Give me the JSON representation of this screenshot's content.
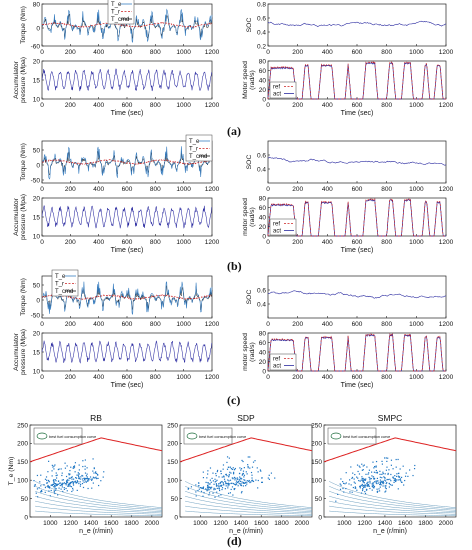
{
  "panel_labels": [
    "(a)",
    "(b)",
    "(c)",
    "(d)"
  ],
  "chart_data": [
    {
      "type": "line",
      "group": "a",
      "panels": [
        {
          "id": "torque",
          "ylabel": "Torque (Nm)",
          "xlabel": "",
          "xlim": [
            0,
            1200
          ],
          "ylim": [
            -60,
            80
          ],
          "xticks": [
            0,
            200,
            400,
            600,
            800,
            1000,
            1200
          ],
          "yticks": [
            -60,
            0,
            80
          ],
          "legend": [
            "T_e",
            "T_r",
            "T_cmd"
          ],
          "legend_position": "top-center"
        },
        {
          "id": "soc",
          "ylabel": "SOC",
          "xlabel": "",
          "xlim": [
            0,
            1200
          ],
          "ylim": [
            0.2,
            0.8
          ],
          "xticks": [
            0,
            200,
            400,
            600,
            800,
            1000,
            1200
          ],
          "yticks": [
            0.2,
            0.4,
            0.6,
            0.8
          ]
        },
        {
          "id": "pressure",
          "ylabel": "Accumulator pressure (Mpa)",
          "xlabel": "Time (sec)",
          "xlim": [
            0,
            1200
          ],
          "ylim": [
            10,
            20
          ],
          "xticks": [
            0,
            200,
            400,
            600,
            800,
            1000,
            1200
          ],
          "yticks": [
            10,
            15,
            20
          ]
        },
        {
          "id": "motor",
          "ylabel": "Motor speed (rad/s)",
          "xlabel": "Time (sec)",
          "xlim": [
            0,
            1200
          ],
          "ylim": [
            0,
            80
          ],
          "xticks": [
            0,
            200,
            400,
            600,
            800,
            1000,
            1200
          ],
          "yticks": [
            0,
            20,
            40,
            60,
            80
          ],
          "legend": [
            "ref",
            "act"
          ],
          "legend_position": "bottom-left"
        }
      ]
    },
    {
      "type": "line",
      "group": "b",
      "panels": [
        {
          "id": "torque",
          "ylabel": "Torque (Nm)",
          "xlabel": "",
          "xlim": [
            0,
            1200
          ],
          "ylim": [
            -60,
            80
          ],
          "xticks": [
            0,
            200,
            400,
            600,
            800,
            1000,
            1200
          ],
          "yticks": [
            -50,
            0,
            50
          ],
          "legend": [
            "T_e",
            "T_r",
            "T_cmd"
          ],
          "legend_position": "top-right"
        },
        {
          "id": "soc",
          "ylabel": "SOC",
          "xlabel": "",
          "xlim": [
            0,
            1200
          ],
          "ylim": [
            0.2,
            0.8
          ],
          "xticks": [
            0,
            200,
            400,
            600,
            800,
            1000,
            1200
          ],
          "yticks": [
            0.4,
            0.6
          ]
        },
        {
          "id": "pressure",
          "ylabel": "Accumulator pressure (Mpa)",
          "xlabel": "Time (sec)",
          "xlim": [
            0,
            1200
          ],
          "ylim": [
            10,
            20
          ],
          "xticks": [
            0,
            200,
            400,
            600,
            800,
            1000,
            1200
          ],
          "yticks": [
            10,
            15,
            20
          ]
        },
        {
          "id": "motor",
          "ylabel": "motor speed (rad/s)",
          "xlabel": "Time (sec)",
          "xlim": [
            0,
            1200
          ],
          "ylim": [
            0,
            80
          ],
          "xticks": [
            0,
            200,
            400,
            600,
            800,
            1000,
            1200
          ],
          "yticks": [
            0,
            20,
            40,
            60,
            80
          ],
          "legend": [
            "ref",
            "act"
          ],
          "legend_position": "bottom-left"
        }
      ]
    },
    {
      "type": "line",
      "group": "c",
      "panels": [
        {
          "id": "torque",
          "ylabel": "Torque (Nm)",
          "xlabel": "",
          "xlim": [
            0,
            1200
          ],
          "ylim": [
            -60,
            80
          ],
          "xticks": [
            0,
            200,
            400,
            600,
            800,
            1000,
            1200
          ],
          "yticks": [
            -50,
            0,
            50
          ],
          "legend": [
            "T_e",
            "T_r",
            "T_cmd"
          ],
          "legend_position": "top-left"
        },
        {
          "id": "soc",
          "ylabel": "SOC",
          "xlabel": "",
          "xlim": [
            0,
            1200
          ],
          "ylim": [
            0.2,
            0.8
          ],
          "xticks": [
            0,
            200,
            400,
            600,
            800,
            1000,
            1200
          ],
          "yticks": [
            0.4,
            0.6
          ]
        },
        {
          "id": "pressure",
          "ylabel": "Accumulator pressure (Mpa)",
          "xlabel": "Time (sec)",
          "xlim": [
            0,
            1200
          ],
          "ylim": [
            10,
            20
          ],
          "xticks": [
            0,
            200,
            400,
            600,
            800,
            1000,
            1200
          ],
          "yticks": [
            10,
            15,
            20
          ]
        },
        {
          "id": "motor",
          "ylabel": "motor speed (rad/s)",
          "xlabel": "Time (sec)",
          "xlim": [
            0,
            1200
          ],
          "ylim": [
            0,
            80
          ],
          "xticks": [
            0,
            200,
            400,
            600,
            800,
            1000,
            1200
          ],
          "yticks": [
            0,
            20,
            40,
            60,
            80
          ],
          "legend": [
            "ref",
            "act"
          ],
          "legend_position": "bottom-left"
        }
      ]
    },
    {
      "type": "scatter",
      "group": "d",
      "panels": [
        {
          "title": "RB",
          "xlabel": "n_e (r/min)",
          "ylabel": "T_e (Nm)",
          "xlim": [
            800,
            2100
          ],
          "ylim": [
            0,
            250
          ],
          "xticks": [
            1000,
            1200,
            1400,
            1600,
            1800,
            2000
          ],
          "yticks": [
            0,
            50,
            100,
            150,
            200,
            250
          ],
          "legend": [
            "best fuel consumption curve"
          ],
          "legend_position": "top-left"
        },
        {
          "title": "SDP",
          "xlabel": "n_e (r/min)",
          "ylabel": "",
          "xlim": [
            800,
            2100
          ],
          "ylim": [
            0,
            250
          ],
          "xticks": [
            1000,
            1200,
            1400,
            1600,
            1800,
            2000
          ],
          "yticks": [
            0,
            50,
            100,
            150,
            200,
            250
          ],
          "legend": [
            "best fuel consumption curve"
          ],
          "legend_position": "top-left"
        },
        {
          "title": "SMPC",
          "xlabel": "n_e (r/min)",
          "ylabel": "",
          "xlim": [
            800,
            2100
          ],
          "ylim": [
            0,
            250
          ],
          "xticks": [
            1000,
            1200,
            1400,
            1600,
            1800,
            2000
          ],
          "yticks": [
            0,
            50,
            100,
            150,
            200,
            250
          ],
          "legend": [
            "best fuel consumption curve"
          ],
          "legend_position": "top-left"
        }
      ]
    }
  ],
  "colors": {
    "te": "#3a7fc1",
    "tr": "#cc2222",
    "tcmd": "#111111",
    "series": "#2a2aa0",
    "ref": "#cc2222",
    "act": "#2a2aa0",
    "scatter": "#1f77c4",
    "maxcurve": "#dd2222",
    "contour": "#6fa0c0"
  }
}
